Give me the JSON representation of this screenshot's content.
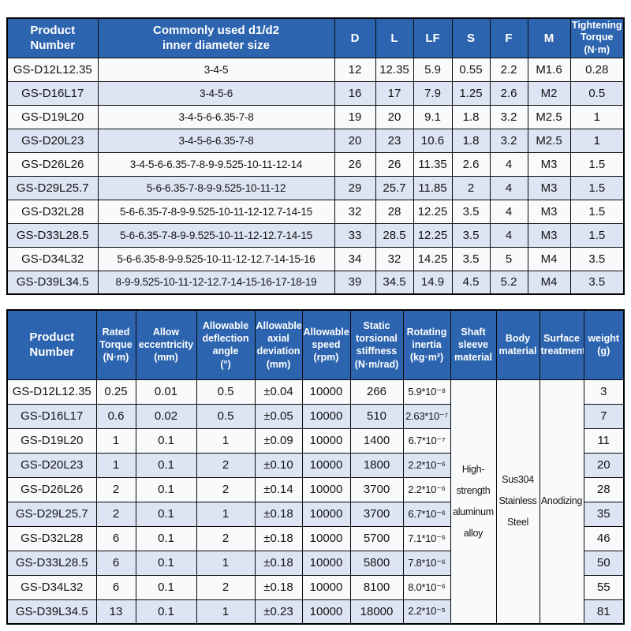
{
  "colors": {
    "header_bg": "#2c64af",
    "header_text": "#ffffff",
    "row_bg": "#f8fafc",
    "row_alt_bg": "#dde4f4",
    "border": "#000000",
    "cell_text": "#141414"
  },
  "table1": {
    "headers": [
      "Product\nNumber",
      "Commonly used d1/d2\ninner diameter size",
      "D",
      "L",
      "LF",
      "S",
      "F",
      "M",
      "Tightening\nTorque\n(N·m)"
    ],
    "rows": [
      [
        "GS-D12L12.35",
        "3-4-5",
        "12",
        "12.35",
        "5.9",
        "0.55",
        "2.2",
        "M1.6",
        "0.28"
      ],
      [
        "GS-D16L17",
        "3-4-5-6",
        "16",
        "17",
        "7.9",
        "1.25",
        "2.6",
        "M2",
        "0.5"
      ],
      [
        "GS-D19L20",
        "3-4-5-6-6.35-7-8",
        "19",
        "20",
        "9.1",
        "1.8",
        "3.2",
        "M2.5",
        "1"
      ],
      [
        "GS-D20L23",
        "3-4-5-6-6.35-7-8",
        "20",
        "23",
        "10.6",
        "1.8",
        "3.2",
        "M2.5",
        "1"
      ],
      [
        "GS-D26L26",
        "3-4-5-6-6.35-7-8-9-9.525-10-11-12-14",
        "26",
        "26",
        "11.35",
        "2.6",
        "4",
        "M3",
        "1.5"
      ],
      [
        "GS-D29L25.7",
        "5-6-6.35-7-8-9-9.525-10-11-12",
        "29",
        "25.7",
        "11.85",
        "2",
        "4",
        "M3",
        "1.5"
      ],
      [
        "GS-D32L28",
        "5-6-6.35-7-8-9-9.525-10-11-12-12.7-14-15",
        "32",
        "28",
        "12.25",
        "3.5",
        "4",
        "M3",
        "1.5"
      ],
      [
        "GS-D33L28.5",
        "5-6-6.35-7-8-9-9.525-10-11-12-12.7-14-15",
        "33",
        "28.5",
        "12.25",
        "3.5",
        "4",
        "M3",
        "1.5"
      ],
      [
        "GS-D34L32",
        "5-6-6.35-8-9-9.525-10-11-12-12.7-14-15-16",
        "34",
        "32",
        "14.25",
        "3.5",
        "5",
        "M4",
        "3.5"
      ],
      [
        "GS-D39L34.5",
        "8-9-9.525-10-11-12-12.7-14-15-16-17-18-19",
        "39",
        "34.5",
        "14.9",
        "4.5",
        "5.2",
        "M4",
        "3.5"
      ]
    ]
  },
  "table2": {
    "headers": [
      "Product\nNumber",
      "Rated\nTorque\n(N·m)",
      "Allow\neccentricity\n(mm)",
      "Allowable\ndeflection\nangle\n(°)",
      "Allowable\naxial\ndeviation\n(mm)",
      "Allowable\nspeed\n(rpm)",
      "Static\ntorsional\nstiffness\n(N·m/rad)",
      "Rotating\ninertia\n(kg·m²)",
      "Shaft\nsleeve\nmaterial",
      "Body\nmaterial",
      "Surface\ntreatment",
      "weight\n(g)"
    ],
    "merged": {
      "shaft_sleeve_material": "High-\nstrength\naluminum\nalloy",
      "body_material": "Sus304\nStainless\nSteel",
      "surface_treatment": "Anodizing"
    },
    "rows": [
      [
        "GS-D12L12.35",
        "0.25",
        "0.01",
        "0.5",
        "±0.04",
        "10000",
        "266",
        "5.9*10⁻⁸",
        "3"
      ],
      [
        "GS-D16L17",
        "0.6",
        "0.02",
        "0.5",
        "±0.05",
        "10000",
        "510",
        "2.63*10⁻⁷",
        "7"
      ],
      [
        "GS-D19L20",
        "1",
        "0.1",
        "1",
        "±0.09",
        "10000",
        "1400",
        "6.7*10⁻⁷",
        "11"
      ],
      [
        "GS-D20L23",
        "1",
        "0.1",
        "2",
        "±0.10",
        "10000",
        "1800",
        "2.2*10⁻⁶",
        "20"
      ],
      [
        "GS-D26L26",
        "2",
        "0.1",
        "2",
        "±0.14",
        "10000",
        "3700",
        "2.2*10⁻⁶",
        "28"
      ],
      [
        "GS-D29L25.7",
        "2",
        "0.1",
        "1",
        "±0.18",
        "10000",
        "3700",
        "6.7*10⁻⁶",
        "35"
      ],
      [
        "GS-D32L28",
        "6",
        "0.1",
        "2",
        "±0.18",
        "10000",
        "5700",
        "7.1*10⁻⁶",
        "46"
      ],
      [
        "GS-D33L28.5",
        "6",
        "0.1",
        "1",
        "±0.18",
        "10000",
        "5800",
        "7.8*10⁻⁶",
        "50"
      ],
      [
        "GS-D34L32",
        "6",
        "0.1",
        "2",
        "±0.18",
        "10000",
        "8100",
        "8.0*10⁻⁶",
        "55"
      ],
      [
        "GS-D39L34.5",
        "13",
        "0.1",
        "1",
        "±0.23",
        "10000",
        "18000",
        "2.2*10⁻⁵",
        "81"
      ]
    ]
  }
}
